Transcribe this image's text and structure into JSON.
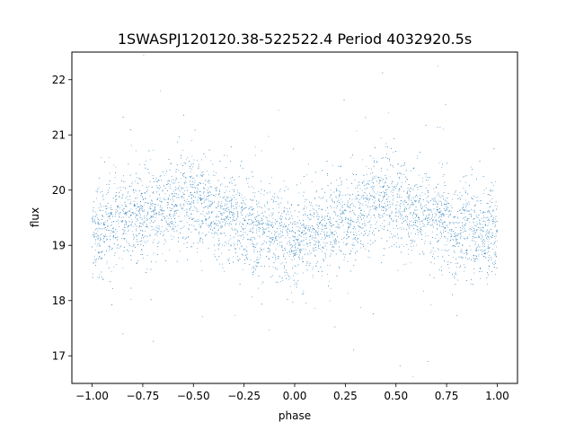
{
  "chart_data": {
    "type": "scatter",
    "title": "1SWASPJ120120.38-522522.4 Period 4032920.5s",
    "xlabel": "phase",
    "ylabel": "flux",
    "xlim": [
      -1.1,
      1.1
    ],
    "ylim": [
      16.5,
      22.5
    ],
    "x_ticks": [
      -1.0,
      -0.75,
      -0.5,
      -0.25,
      0.0,
      0.25,
      0.5,
      0.75,
      1.0
    ],
    "x_tick_labels": [
      "−1.00",
      "−0.75",
      "−0.50",
      "−0.25",
      "0.00",
      "0.25",
      "0.50",
      "0.75",
      "1.00"
    ],
    "y_ticks": [
      17,
      18,
      19,
      20,
      21,
      22
    ],
    "y_tick_labels": [
      "17",
      "18",
      "19",
      "20",
      "21",
      "22"
    ],
    "grid": false,
    "legend": "none",
    "point_color": "#1f77b4",
    "series": [
      {
        "x": [
          -1.0,
          -0.9,
          -0.8,
          -0.7,
          -0.6,
          -0.55,
          -0.5,
          -0.4,
          -0.3,
          -0.2,
          -0.1,
          0.0,
          0.1,
          0.2,
          0.3,
          0.4,
          0.45,
          0.5,
          0.6,
          0.7,
          0.8,
          0.9,
          1.0
        ],
        "y": [
          19.2,
          19.4,
          19.5,
          19.6,
          19.8,
          19.9,
          19.8,
          19.6,
          19.5,
          19.3,
          19.2,
          19.1,
          19.2,
          19.4,
          19.5,
          19.8,
          19.9,
          19.8,
          19.6,
          19.5,
          19.3,
          19.2,
          19.2
        ],
        "spread": [
          0.4,
          0.4,
          0.4,
          0.4,
          0.4,
          0.4,
          0.4,
          0.4,
          0.4,
          0.4,
          0.4,
          0.4,
          0.4,
          0.4,
          0.4,
          0.4,
          0.4,
          0.4,
          0.4,
          0.4,
          0.4,
          0.4,
          0.4
        ]
      }
    ]
  }
}
